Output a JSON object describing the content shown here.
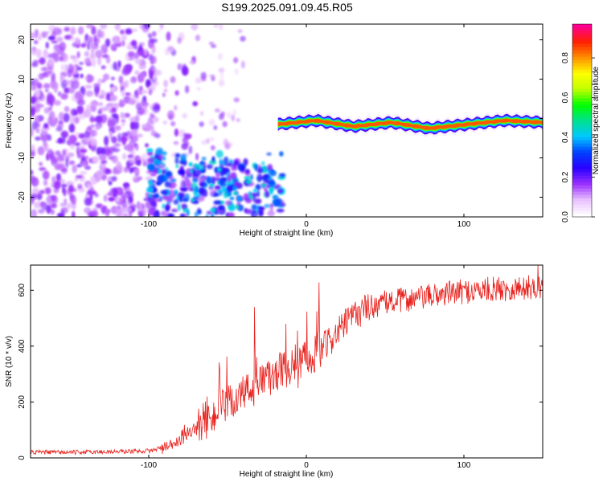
{
  "page": {
    "title": "S199.2025.091.09.45.R05"
  },
  "chart_data": [
    {
      "type": "heatmap",
      "title": "S199.2025.091.09.45.R05",
      "xlabel": "Height of straight line (km)",
      "ylabel": "Frequency (Hz)",
      "xlim": [
        -175,
        150
      ],
      "ylim": [
        -25,
        24
      ],
      "xticks": [
        -100,
        0,
        100
      ],
      "xtick_labels": [
        "-100",
        "0",
        "100"
      ],
      "yticks": [
        20,
        10,
        0,
        -10,
        -20
      ],
      "ytick_labels": [
        "20",
        "10",
        "0",
        "-10",
        "-20"
      ],
      "grid": false,
      "colorbar": {
        "label": "Normalized spectral amplitude",
        "range": [
          0,
          0.97
        ],
        "ticks": [
          0.0,
          0.2,
          0.4,
          0.6,
          0.8
        ],
        "tick_labels": [
          "0.0",
          "0.2",
          "0.4",
          "0.6",
          "0.8"
        ],
        "colormap": [
          "#ffffff",
          "#e8c0ff",
          "#9b30ff",
          "#2a00ff",
          "#0040ff",
          "#00c8ff",
          "#00e090",
          "#00ff00",
          "#c0ff00",
          "#ffff00",
          "#ff9000",
          "#ff2000",
          "#ff0090"
        ]
      },
      "features": [
        {
          "name": "broadband noise",
          "x_range": [
            -175,
            -100
          ],
          "y_range": [
            -25,
            24
          ],
          "amplitude": 0.25
        },
        {
          "name": "lower scattered echoes",
          "x_range": [
            -100,
            -15
          ],
          "y_range": [
            -25,
            -8
          ],
          "amplitude": 0.3
        },
        {
          "name": "narrow echo trace",
          "x_range": [
            -18,
            150
          ],
          "frequency": [
            -1.5,
            -0.5,
            -2.0,
            -1.0,
            -2.5,
            -1.5,
            -0.5,
            -1.0
          ],
          "amplitude": 0.85
        }
      ]
    },
    {
      "type": "line",
      "xlabel": "Height of straight line (km)",
      "ylabel": "SNR (10 * v/v)",
      "xlim": [
        -175,
        150
      ],
      "ylim": [
        0,
        690
      ],
      "xticks": [
        -100,
        0,
        100
      ],
      "xtick_labels": [
        "-100",
        "0",
        "100"
      ],
      "yticks": [
        0,
        200,
        400,
        600
      ],
      "ytick_labels": [
        "0",
        "200",
        "400",
        "600"
      ],
      "grid": false,
      "color": "#e8231f",
      "series": [
        {
          "x": [
            -175,
            -150,
            -125,
            -100,
            -90,
            -80,
            -70,
            -60,
            -50,
            -40,
            -30,
            -20,
            -10,
            0,
            10,
            20,
            30,
            40,
            50,
            60,
            70,
            80,
            90,
            100,
            110,
            120,
            130,
            140,
            150
          ],
          "values": [
            20,
            20,
            22,
            25,
            35,
            60,
            110,
            150,
            190,
            230,
            260,
            300,
            330,
            360,
            390,
            450,
            510,
            540,
            555,
            565,
            570,
            580,
            590,
            595,
            600,
            605,
            605,
            610,
            610
          ]
        }
      ],
      "peaks": [
        {
          "x": -63,
          "y": 220
        },
        {
          "x": -33,
          "y": 540
        },
        {
          "x": -13,
          "y": 480
        },
        {
          "x": 8,
          "y": 628
        },
        {
          "x": 147,
          "y": 690
        }
      ]
    }
  ]
}
